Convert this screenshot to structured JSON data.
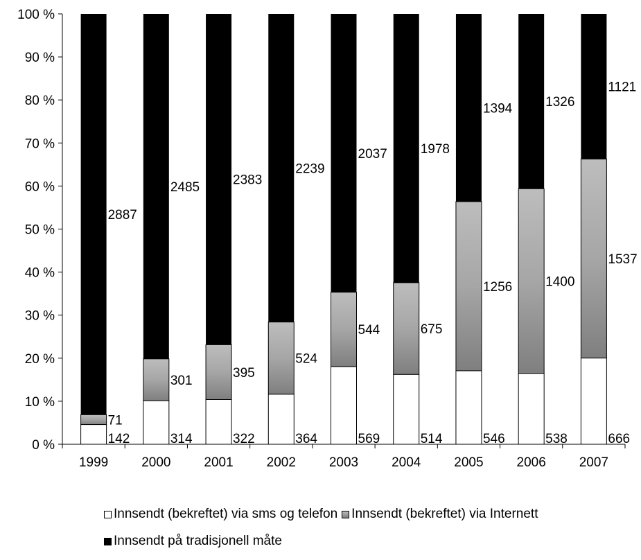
{
  "chart_data": {
    "type": "bar",
    "stacked": "percent",
    "title": "",
    "xlabel": "",
    "ylabel": "",
    "ylim": [
      0,
      100
    ],
    "y_ticks": [
      "0 %",
      "10 %",
      "20 %",
      "30 %",
      "40 %",
      "50 %",
      "60 %",
      "70 %",
      "80 %",
      "90 %",
      "100 %"
    ],
    "categories": [
      "1999",
      "2000",
      "2001",
      "2002",
      "2003",
      "2004",
      "2005",
      "2006",
      "2007"
    ],
    "series": [
      {
        "name": "Innsendt (bekreftet) via sms og telefon",
        "color": "#ffffff",
        "values": [
          142,
          314,
          322,
          364,
          569,
          514,
          546,
          538,
          666
        ]
      },
      {
        "name": "Innsendt (bekreftet) via Internett",
        "color": "#a6a6a6",
        "values": [
          71,
          301,
          395,
          524,
          544,
          675,
          1256,
          1400,
          1537
        ]
      },
      {
        "name": "Innsendt på tradisjonell måte",
        "color": "#000000",
        "values": [
          2887,
          2485,
          2383,
          2239,
          2037,
          1978,
          1394,
          1326,
          1121
        ]
      }
    ],
    "legend_position": "bottom",
    "grid": false
  }
}
